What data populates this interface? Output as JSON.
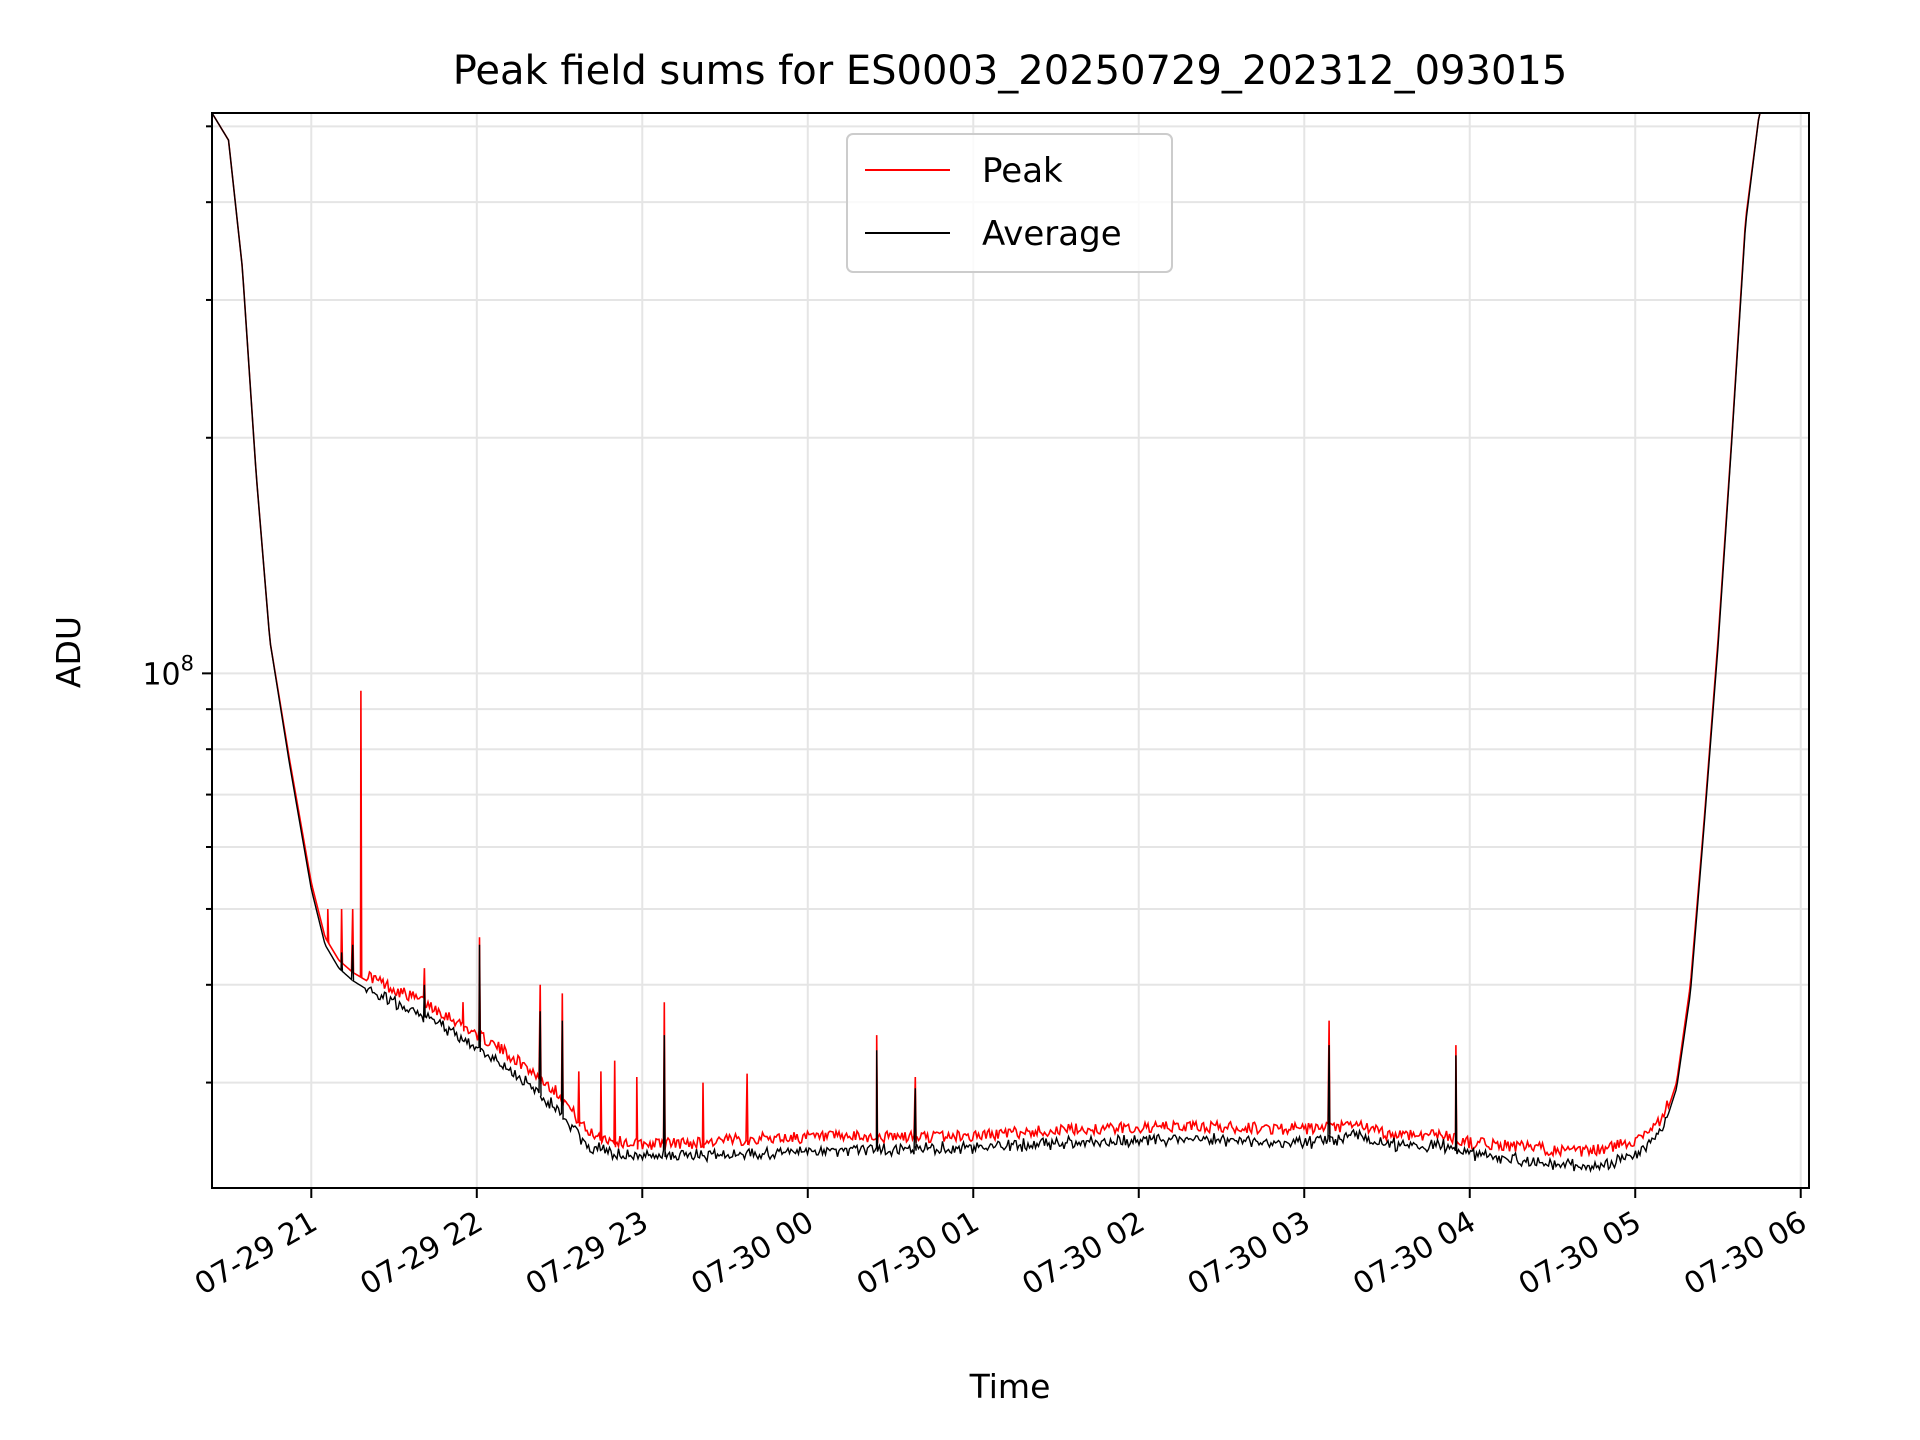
{
  "chart_data": {
    "type": "line",
    "title": "Peak field sums for ES0003_20250729_202312_093015",
    "xlabel": "Time",
    "ylabel": "ADU",
    "y_scale": "log",
    "grid": true,
    "legend_position": "upper center",
    "xlim": [
      "2025-07-29 20:24",
      "2025-07-30 06:03"
    ],
    "ylim": [
      22000000,
      520000000
    ],
    "x_ticks": [
      {
        "t": "2025-07-29 21:00",
        "label": "07-29 21"
      },
      {
        "t": "2025-07-29 22:00",
        "label": "07-29 22"
      },
      {
        "t": "2025-07-29 23:00",
        "label": "07-29 23"
      },
      {
        "t": "2025-07-30 00:00",
        "label": "07-30 00"
      },
      {
        "t": "2025-07-30 01:00",
        "label": "07-30 01"
      },
      {
        "t": "2025-07-30 02:00",
        "label": "07-30 02"
      },
      {
        "t": "2025-07-30 03:00",
        "label": "07-30 03"
      },
      {
        "t": "2025-07-30 04:00",
        "label": "07-30 04"
      },
      {
        "t": "2025-07-30 05:00",
        "label": "07-30 05"
      },
      {
        "t": "2025-07-30 06:00",
        "label": "07-30 06"
      }
    ],
    "y_major_ticks": [
      {
        "value": 100000000,
        "label_base": "10",
        "label_exp": "8"
      }
    ],
    "series": [
      {
        "name": "Peak",
        "color": "#ff0000",
        "points": [
          [
            "2025-07-29 20:24",
            520000000
          ],
          [
            "2025-07-29 20:30",
            480000000
          ],
          [
            "2025-07-29 20:35",
            330000000
          ],
          [
            "2025-07-29 20:40",
            180000000
          ],
          [
            "2025-07-29 20:45",
            110000000
          ],
          [
            "2025-07-29 20:52",
            78000000
          ],
          [
            "2025-07-29 21:00",
            54000000
          ],
          [
            "2025-07-29 21:05",
            46000000
          ],
          [
            "2025-07-29 21:10",
            43000000
          ],
          [
            "2025-07-29 21:15",
            41500000
          ],
          [
            "2025-07-29 21:20",
            40500000
          ],
          [
            "2025-07-29 21:30",
            38800000
          ],
          [
            "2025-07-29 21:40",
            37500000
          ],
          [
            "2025-07-29 21:50",
            35800000
          ],
          [
            "2025-07-29 22:00",
            34000000
          ],
          [
            "2025-07-29 22:10",
            32300000
          ],
          [
            "2025-07-29 22:20",
            30500000
          ],
          [
            "2025-07-29 22:30",
            28500000
          ],
          [
            "2025-07-29 22:40",
            25500000
          ],
          [
            "2025-07-29 22:50",
            24800000
          ],
          [
            "2025-07-29 23:00",
            24600000
          ],
          [
            "2025-07-29 23:20",
            24700000
          ],
          [
            "2025-07-29 23:40",
            25000000
          ],
          [
            "2025-07-30 00:00",
            25100000
          ],
          [
            "2025-07-30 00:30",
            25100000
          ],
          [
            "2025-07-30 01:00",
            25200000
          ],
          [
            "2025-07-30 01:20",
            25500000
          ],
          [
            "2025-07-30 01:40",
            25700000
          ],
          [
            "2025-07-30 02:00",
            25800000
          ],
          [
            "2025-07-30 02:20",
            25900000
          ],
          [
            "2025-07-30 02:40",
            25800000
          ],
          [
            "2025-07-30 03:00",
            25700000
          ],
          [
            "2025-07-30 03:10",
            25800000
          ],
          [
            "2025-07-30 03:20",
            26000000
          ],
          [
            "2025-07-30 03:30",
            25300000
          ],
          [
            "2025-07-30 03:50",
            25300000
          ],
          [
            "2025-07-30 04:00",
            24700000
          ],
          [
            "2025-07-30 04:20",
            24400000
          ],
          [
            "2025-07-30 04:40",
            24000000
          ],
          [
            "2025-07-30 04:50",
            24300000
          ],
          [
            "2025-07-30 05:00",
            24900000
          ],
          [
            "2025-07-30 05:10",
            26500000
          ],
          [
            "2025-07-30 05:15",
            30000000
          ],
          [
            "2025-07-30 05:20",
            40000000
          ],
          [
            "2025-07-30 05:25",
            65000000
          ],
          [
            "2025-07-30 05:30",
            110000000
          ],
          [
            "2025-07-30 05:35",
            200000000
          ],
          [
            "2025-07-30 05:40",
            380000000
          ],
          [
            "2025-07-30 05:45",
            520000000
          ],
          [
            "2025-07-30 06:03",
            520000000
          ]
        ],
        "spikes": [
          [
            "2025-07-29 21:06",
            50000000
          ],
          [
            "2025-07-29 21:11",
            50000000
          ],
          [
            "2025-07-29 21:15",
            50000000
          ],
          [
            "2025-07-29 21:18",
            95000000
          ],
          [
            "2025-07-29 21:41",
            42000000
          ],
          [
            "2025-07-29 21:55",
            38000000
          ],
          [
            "2025-07-29 22:01",
            46000000
          ],
          [
            "2025-07-29 22:23",
            40000000
          ],
          [
            "2025-07-29 22:31",
            39000000
          ],
          [
            "2025-07-29 22:37",
            31000000
          ],
          [
            "2025-07-29 22:45",
            31000000
          ],
          [
            "2025-07-29 22:50",
            32000000
          ],
          [
            "2025-07-29 22:58",
            30500000
          ],
          [
            "2025-07-29 23:08",
            38000000
          ],
          [
            "2025-07-29 23:22",
            30000000
          ],
          [
            "2025-07-29 23:38",
            30800000
          ],
          [
            "2025-07-30 00:25",
            34500000
          ],
          [
            "2025-07-30 00:39",
            30500000
          ],
          [
            "2025-07-30 03:09",
            36000000
          ],
          [
            "2025-07-30 03:55",
            33500000
          ]
        ]
      },
      {
        "name": "Average",
        "color": "#000000",
        "points": [
          [
            "2025-07-29 20:24",
            520000000
          ],
          [
            "2025-07-29 20:30",
            480000000
          ],
          [
            "2025-07-29 20:35",
            330000000
          ],
          [
            "2025-07-29 20:40",
            180000000
          ],
          [
            "2025-07-29 20:45",
            110000000
          ],
          [
            "2025-07-29 20:52",
            77000000
          ],
          [
            "2025-07-29 21:00",
            53000000
          ],
          [
            "2025-07-29 21:05",
            45000000
          ],
          [
            "2025-07-29 21:10",
            42000000
          ],
          [
            "2025-07-29 21:15",
            40500000
          ],
          [
            "2025-07-29 21:20",
            39500000
          ],
          [
            "2025-07-29 21:30",
            37800000
          ],
          [
            "2025-07-29 21:40",
            36500000
          ],
          [
            "2025-07-29 21:50",
            34800000
          ],
          [
            "2025-07-29 22:00",
            33000000
          ],
          [
            "2025-07-29 22:10",
            31300000
          ],
          [
            "2025-07-29 22:20",
            29500000
          ],
          [
            "2025-07-29 22:30",
            27500000
          ],
          [
            "2025-07-29 22:40",
            24800000
          ],
          [
            "2025-07-29 22:50",
            24200000
          ],
          [
            "2025-07-29 23:00",
            24100000
          ],
          [
            "2025-07-29 23:20",
            24100000
          ],
          [
            "2025-07-29 23:40",
            24200000
          ],
          [
            "2025-07-30 00:00",
            24400000
          ],
          [
            "2025-07-30 00:30",
            24500000
          ],
          [
            "2025-07-30 01:00",
            24700000
          ],
          [
            "2025-07-30 01:20",
            24900000
          ],
          [
            "2025-07-30 01:40",
            25100000
          ],
          [
            "2025-07-30 02:00",
            25200000
          ],
          [
            "2025-07-30 02:20",
            25300000
          ],
          [
            "2025-07-30 02:40",
            25100000
          ],
          [
            "2025-07-30 03:00",
            25000000
          ],
          [
            "2025-07-30 03:10",
            25200000
          ],
          [
            "2025-07-30 03:20",
            25600000
          ],
          [
            "2025-07-30 03:30",
            24900000
          ],
          [
            "2025-07-30 03:50",
            24800000
          ],
          [
            "2025-07-30 04:00",
            24200000
          ],
          [
            "2025-07-30 04:20",
            23700000
          ],
          [
            "2025-07-30 04:40",
            23300000
          ],
          [
            "2025-07-30 04:50",
            23500000
          ],
          [
            "2025-07-30 05:00",
            24200000
          ],
          [
            "2025-07-30 05:10",
            26000000
          ],
          [
            "2025-07-30 05:15",
            29500000
          ],
          [
            "2025-07-30 05:20",
            39000000
          ],
          [
            "2025-07-30 05:25",
            64000000
          ],
          [
            "2025-07-30 05:30",
            108000000
          ],
          [
            "2025-07-30 05:35",
            198000000
          ],
          [
            "2025-07-30 05:40",
            375000000
          ],
          [
            "2025-07-30 05:45",
            520000000
          ],
          [
            "2025-07-30 06:03",
            520000000
          ]
        ],
        "spikes": [
          [
            "2025-07-29 21:11",
            44000000
          ],
          [
            "2025-07-29 21:15",
            45000000
          ],
          [
            "2025-07-29 21:41",
            40000000
          ],
          [
            "2025-07-29 22:01",
            45000000
          ],
          [
            "2025-07-29 22:23",
            37000000
          ],
          [
            "2025-07-29 22:31",
            36000000
          ],
          [
            "2025-07-29 23:08",
            34500000
          ],
          [
            "2025-07-30 00:25",
            33000000
          ],
          [
            "2025-07-30 00:39",
            29500000
          ],
          [
            "2025-07-30 03:09",
            33500000
          ],
          [
            "2025-07-30 03:55",
            32500000
          ]
        ]
      }
    ]
  }
}
